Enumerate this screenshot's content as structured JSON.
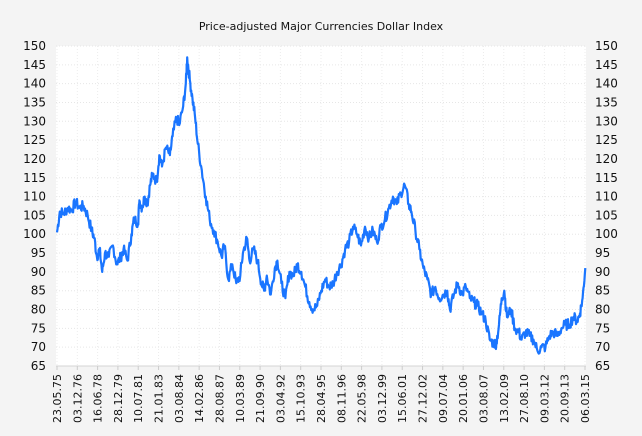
{
  "chart_data": {
    "type": "line",
    "title": "Price-adjusted Major Currencies Dollar Index",
    "xlabel": "",
    "ylabel": "",
    "ylim": [
      65,
      150
    ],
    "yticks": [
      65,
      70,
      75,
      80,
      85,
      90,
      95,
      100,
      105,
      110,
      115,
      120,
      125,
      130,
      135,
      140,
      145,
      150
    ],
    "yticks_both_sides": true,
    "grid": true,
    "legend": "none",
    "line_color": "#1a75ff",
    "x_tick_labels": [
      "23.05.75",
      "03.12.76",
      "16.06.78",
      "28.12.79",
      "10.07.81",
      "21.01.83",
      "03.08.84",
      "14.02.86",
      "28.08.87",
      "10.03.89",
      "21.09.90",
      "03.04.92",
      "15.10.93",
      "28.04.95",
      "08.11.96",
      "22.05.98",
      "03.12.99",
      "15.06.01",
      "27.12.02",
      "09.07.04",
      "20.01.06",
      "03.08.07",
      "13.02.09",
      "27.08.10",
      "09.03.12",
      "20.09.13",
      "06.03.15"
    ],
    "series": [
      {
        "name": "Price-adjusted Major Currencies Dollar Index",
        "x": [
          1975.39,
          1975.6,
          1975.9,
          1976.2,
          1976.5,
          1976.8,
          1977.1,
          1977.4,
          1977.7,
          1978.0,
          1978.2,
          1978.4,
          1978.6,
          1978.8,
          1979.0,
          1979.3,
          1979.6,
          1979.9,
          1980.2,
          1980.4,
          1980.7,
          1981.0,
          1981.2,
          1981.5,
          1981.6,
          1981.8,
          1982.0,
          1982.2,
          1982.4,
          1982.6,
          1982.9,
          1983.1,
          1983.3,
          1983.6,
          1983.9,
          1984.1,
          1984.4,
          1984.6,
          1984.9,
          1985.1,
          1985.2,
          1985.4,
          1985.6,
          1985.8,
          1986.0,
          1986.3,
          1986.6,
          1986.9,
          1987.2,
          1987.5,
          1987.8,
          1988.0,
          1988.3,
          1988.6,
          1988.9,
          1989.2,
          1989.4,
          1989.7,
          1989.9,
          1990.2,
          1990.5,
          1990.8,
          1991.0,
          1991.2,
          1991.5,
          1991.8,
          1992.0,
          1992.3,
          1992.6,
          1992.9,
          1993.2,
          1993.5,
          1993.8,
          1994.1,
          1994.4,
          1994.7,
          1995.0,
          1995.3,
          1995.6,
          1995.9,
          1996.2,
          1996.5,
          1996.8,
          1997.1,
          1997.4,
          1997.7,
          1998.0,
          1998.3,
          1998.6,
          1998.9,
          1999.2,
          1999.5,
          1999.8,
          2000.1,
          2000.4,
          2000.7,
          2001.0,
          2001.3,
          2001.6,
          2001.9,
          2002.1,
          2002.4,
          2002.7,
          2003.0,
          2003.3,
          2003.6,
          2003.9,
          2004.2,
          2004.5,
          2004.8,
          2005.0,
          2005.3,
          2005.6,
          2005.9,
          2006.2,
          2006.5,
          2006.8,
          2007.1,
          2007.4,
          2007.7,
          2008.0,
          2008.3,
          2008.5,
          2008.7,
          2008.9,
          2009.1,
          2009.3,
          2009.6,
          2009.9,
          2010.2,
          2010.4,
          2010.7,
          2011.0,
          2011.3,
          2011.6,
          2011.9,
          2012.2,
          2012.5,
          2012.8,
          2013.1,
          2013.4,
          2013.7,
          2014.0,
          2014.3,
          2014.6,
          2014.8,
          2015.0,
          2015.2
        ],
        "values": [
          100.5,
          106,
          105.5,
          107,
          106.5,
          108.5,
          107,
          107.5,
          105,
          101,
          99,
          94,
          96,
          90,
          95,
          94,
          97,
          92,
          94,
          96,
          93,
          100,
          104,
          103,
          109,
          107,
          110,
          108,
          113,
          116,
          114,
          121,
          118,
          123,
          121,
          126,
          131,
          129,
          134,
          140,
          147,
          141,
          136,
          131,
          124,
          117,
          110,
          104,
          101,
          98,
          94,
          97,
          88,
          92,
          87,
          89,
          95,
          99,
          93,
          96,
          93,
          87,
          85,
          89,
          84,
          91,
          93,
          87,
          83,
          90,
          89,
          92,
          90,
          86,
          82,
          80,
          81,
          85,
          88,
          86,
          87,
          90,
          92,
          96,
          98,
          102,
          100,
          97,
          102,
          99,
          101,
          98,
          102,
          104,
          107,
          110,
          108,
          111,
          113,
          108,
          106,
          101,
          96,
          91,
          88,
          84,
          86,
          83,
          84,
          85,
          80,
          84,
          87,
          84,
          86,
          83,
          82,
          81,
          79,
          77,
          72,
          71,
          71,
          76,
          83,
          85,
          78,
          80,
          75,
          74,
          72,
          74,
          73,
          72,
          69,
          70,
          70,
          73,
          74,
          73,
          75,
          76,
          76,
          78,
          77,
          79,
          83,
          91
        ]
      }
    ]
  }
}
